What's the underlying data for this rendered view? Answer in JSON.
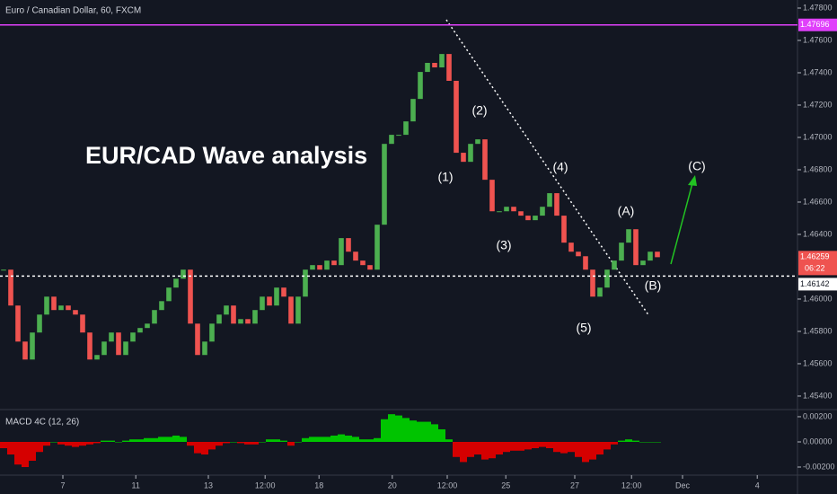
{
  "chart_data": {
    "type": "candlestick",
    "header": "Euro / Canadian Dollar, 60, FXCM",
    "title": "EUR/CAD Wave analysis",
    "up_color": "#4caf50",
    "down_color": "#ef5350",
    "close": [
      1.46182,
      1.4596,
      1.45737,
      1.45626,
      1.45793,
      1.45904,
      1.46015,
      1.45932,
      1.4596,
      1.45932,
      1.45904,
      1.45793,
      1.45626,
      1.45654,
      1.45737,
      1.45793,
      1.45654,
      1.45737,
      1.45793,
      1.45821,
      1.45848,
      1.45932,
      1.45987,
      1.46071,
      1.46126,
      1.46182,
      1.45848,
      1.45654,
      1.45737,
      1.45848,
      1.45904,
      1.4596,
      1.45848,
      1.45876,
      1.45848,
      1.45932,
      1.46015,
      1.4596,
      1.46071,
      1.46015,
      1.45848,
      1.46015,
      1.46182,
      1.4621,
      1.46182,
      1.46238,
      1.4621,
      1.46377,
      1.46293,
      1.46238,
      1.4621,
      1.46182,
      1.4646,
      1.4696,
      1.47016,
      1.47016,
      1.47099,
      1.47238,
      1.47405,
      1.47461,
      1.47433,
      1.47516,
      1.4735,
      1.46905,
      1.46849,
      1.4696,
      1.46988,
      1.46738,
      1.46543,
      1.46543,
      1.46571,
      1.46543,
      1.46516,
      1.46488,
      1.46516,
      1.46571,
      1.46655,
      1.46516,
      1.46349,
      1.46293,
      1.46265,
      1.46182,
      1.46015,
      1.46071,
      1.46182,
      1.46238,
      1.46349,
      1.46432,
      1.4621,
      1.46238,
      1.46293,
      1.46259
    ],
    "xlim": [
      -0.5,
      110.5
    ],
    "xticks": [
      {
        "value": 8.25,
        "label": "7"
      },
      {
        "value": 18.4,
        "label": "11"
      },
      {
        "value": 28.5,
        "label": "13"
      },
      {
        "value": 36.4,
        "label": "12:00"
      },
      {
        "value": 43.9,
        "label": "18"
      },
      {
        "value": 54.1,
        "label": "20"
      },
      {
        "value": 61.75,
        "label": "12:00"
      },
      {
        "value": 69.9,
        "label": "25"
      },
      {
        "value": 79.5,
        "label": "27"
      },
      {
        "value": 87.4,
        "label": "12:00"
      },
      {
        "value": 94.5,
        "label": "Dec"
      },
      {
        "value": 104.9,
        "label": "4"
      }
    ],
    "ylim": [
      1.45322,
      1.4785
    ],
    "yticks": [
      {
        "value": 1.478,
        "label": "1.47800"
      },
      {
        "value": 1.476,
        "label": "1.47600"
      },
      {
        "value": 1.474,
        "label": "1.47400"
      },
      {
        "value": 1.472,
        "label": "1.47200"
      },
      {
        "value": 1.47,
        "label": "1.47000"
      },
      {
        "value": 1.468,
        "label": "1.46800"
      },
      {
        "value": 1.466,
        "label": "1.46600"
      },
      {
        "value": 1.464,
        "label": "1.46400"
      },
      {
        "value": 1.46,
        "label": "1.46000"
      },
      {
        "value": 1.458,
        "label": "1.45800"
      },
      {
        "value": 1.456,
        "label": "1.45600"
      },
      {
        "value": 1.454,
        "label": "1.45400"
      }
    ],
    "hlines": [
      {
        "value": 1.47696,
        "label": "1.47696",
        "color": "#e040fb"
      },
      {
        "value": 1.46142,
        "label": "1.46142",
        "color": "#ffffff"
      }
    ],
    "last_price": {
      "value": 1.46259,
      "label": "1.46259",
      "countdown": "06:22"
    },
    "annotations": [
      "(1)",
      "(2)",
      "(3)",
      "(4)",
      "(5)",
      "(A)",
      "(B)",
      "(C)"
    ],
    "macd": {
      "title": "MACD 4C (12, 26)",
      "values": [
        -0.0005,
        -0.001,
        -0.0018,
        -0.002,
        -0.0015,
        -0.0008,
        -0.0003,
        0.0,
        -0.0002,
        -0.0003,
        -0.0004,
        -0.0003,
        -0.0002,
        -0.0001,
        0.0001,
        0.0001,
        0.0,
        0.0001,
        0.0002,
        0.0002,
        0.0003,
        0.0003,
        0.0004,
        0.0004,
        0.0005,
        0.0004,
        -0.0003,
        -0.0009,
        -0.001,
        -0.0006,
        -0.0003,
        -0.0001,
        0.0,
        -0.0001,
        -0.0002,
        -0.0002,
        0.0,
        0.0002,
        0.0002,
        0.0001,
        -0.0003,
        0.0,
        0.0003,
        0.0004,
        0.0004,
        0.0004,
        0.0005,
        0.0006,
        0.0005,
        0.0004,
        0.0002,
        0.0002,
        0.0003,
        0.0018,
        0.0022,
        0.0021,
        0.0019,
        0.0017,
        0.0016,
        0.0016,
        0.0014,
        0.001,
        0.0002,
        -0.0012,
        -0.0016,
        -0.0012,
        -0.001,
        -0.0014,
        -0.0013,
        -0.001,
        -0.0008,
        -0.0007,
        -0.0007,
        -0.0006,
        -0.0005,
        -0.0004,
        -0.0005,
        -0.0008,
        -0.0009,
        -0.0008,
        -0.0012,
        -0.0016,
        -0.0014,
        -0.001,
        -0.0006,
        -0.0002,
        0.0001,
        0.0002,
        0.0001,
        0.0,
        0.0,
        0.0
      ],
      "ylim": [
        -0.00257,
        0.00264
      ],
      "yticks": [
        {
          "value": 0.002,
          "label": "0.00200"
        },
        {
          "value": 0,
          "label": "0.00000"
        },
        {
          "value": -0.002,
          "label": "-0.00200"
        }
      ]
    }
  }
}
